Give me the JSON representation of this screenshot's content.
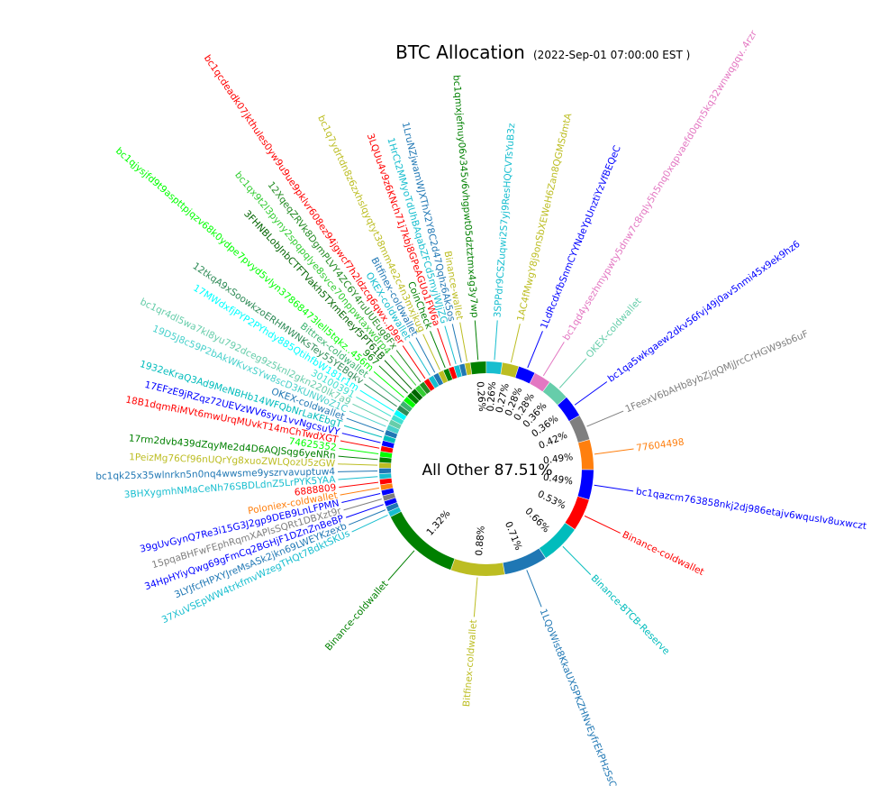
{
  "chart_data": {
    "type": "pie",
    "style": "donut",
    "title": "BTC Allocation",
    "subtitle": "(2022-Sep-01 07:00:00 EST )",
    "center_label": "All Other 87.51%",
    "other_value": 87.51,
    "slices": [
      {
        "label": "bc1qazcm763858nkj2dj986etajv6wqusIv8uxwczt",
        "value": 0.49,
        "pct": "0.49%",
        "color": "#0000ff"
      },
      {
        "label": "Binance-coldwallet",
        "value": 0.53,
        "pct": "0.53%",
        "color": "#ff0000"
      },
      {
        "label": "Binance-BTCB-Reserve",
        "value": 0.66,
        "pct": "0.66%",
        "color": "#00bcbc"
      },
      {
        "label": "1LQoWist8KkaUXSPKZHNvEyfrEkPHzSsCd",
        "value": 0.71,
        "pct": "0.71%",
        "color": "#1f77b4"
      },
      {
        "label": "Bitfinex-coldwallet",
        "value": 0.88,
        "pct": "0.88%",
        "color": "#bcbd22"
      },
      {
        "label": "Binance-coldwallet",
        "value": 1.32,
        "pct": "1.32%",
        "color": "#008000"
      },
      {
        "label": "37XuVSEpWW4trkfmvWzegTHQt7BdktSKUs",
        "value": 0.09,
        "color": "#17becf"
      },
      {
        "label": "3LYJfcfHPXYJreMsASk2jkn69LWEYKzexb",
        "value": 0.09,
        "color": "#1f77b4"
      },
      {
        "label": "34HpHYiyQwg69gFmCq2BGHjF1DZnZnBeBP",
        "value": 0.09,
        "color": "#0000ff"
      },
      {
        "label": "15pqaBHFwFEphRqmXAPlsSQRt1DBXzt9r",
        "value": 0.09,
        "color": "#7f7f7f"
      },
      {
        "label": "39gUvGynQ7Re3i15G3J2gp9DEB9LnLFPMN",
        "value": 0.09,
        "color": "#0000ff"
      },
      {
        "label": "Poloniex-coldwallet",
        "value": 0.09,
        "color": "#ff7f0e"
      },
      {
        "label": "6888809",
        "value": 0.09,
        "color": "#ff0000"
      },
      {
        "label": "3BHXygmhNMaCeNh76SBDLdnZ5LrPYK5YAA",
        "value": 0.09,
        "color": "#17becf"
      },
      {
        "label": "bc1qk25x35wlnrkn5n0nq4wwsme9yszrvavuptuw4",
        "value": 0.09,
        "color": "#1f77b4"
      },
      {
        "label": "1PeizMg76Cf96nUQrYg8xuoZWLQozU5zGW",
        "value": 0.09,
        "color": "#bcbd22"
      },
      {
        "label": "17rm2dvb439dZqyMe2d4D6AQJSqg6yeNRn",
        "value": 0.09,
        "color": "#008000"
      },
      {
        "label": "74625352",
        "value": 0.09,
        "color": "#00ff00"
      },
      {
        "label": "18B1dqmRiMVt6mwUrqMUvkT14mChTwdXGT",
        "value": 0.09,
        "color": "#ff0000"
      },
      {
        "label": "17EFzE9jRZqz72UEVzWV6syu1vvNgcsuVY",
        "value": 0.09,
        "color": "#0000ff"
      },
      {
        "label": "1932eKraQ3Ad9MeNBHb14WFQbNrLaKEbgT",
        "value": 0.09,
        "color": "#00bcbc"
      },
      {
        "label": "OKEX-coldwallet",
        "value": 0.09,
        "color": "#1f77b4"
      },
      {
        "label": "19D5J8c59P2bAkWKvxSYw8scD3KUNWoZ1C",
        "value": 0.09,
        "color": "#48d1cc"
      },
      {
        "label": "bc1qr4dl5wa7kl8yu792dceg9z5knl2gkn220lk7a9",
        "value": 0.09,
        "color": "#66cdaa"
      },
      {
        "label": "30100391",
        "value": 0.09,
        "color": "#40e0d0"
      },
      {
        "label": "17MWdxfjPYP2PYhdy885QtihfbW181r1m",
        "value": 0.09,
        "color": "#00ffff"
      },
      {
        "label": "12tkqA9xSoowkzoERHMWNKsTey55YEBqkv",
        "value": 0.09,
        "color": "#2e8b57"
      },
      {
        "label": "Bittrex-coldwallet",
        "value": 0.09,
        "color": "#3cb371"
      },
      {
        "label": "bc1qjysjfd9t9aspttpjqzv68k0ydpe7pvyd5vlyn37868473lell5tqkz..456m",
        "value": 0.09,
        "color": "#00ff00"
      },
      {
        "label": "967",
        "value": 0.09,
        "color": "#008000"
      },
      {
        "label": "3FHNBLobJnbCTFTVakh5TXmEneyf5PT61B",
        "value": 0.09,
        "color": "#006400"
      },
      {
        "label": "bc1qx9t2l3pyny2spqpqlye8svce70nppwtaxwdrp4",
        "value": 0.09,
        "color": "#32cd32"
      },
      {
        "label": "12XqeqZRVk8DgmPLVY4ZC6Y4ruUUEug8Fx",
        "value": 0.09,
        "color": "#228b22"
      },
      {
        "label": "bc1qcdeadk07jkthules0yw9u9ue9pklvr608ez94jgwcf7h2ldzcq6qwx..p9er",
        "value": 0.09,
        "color": "#ff0000"
      },
      {
        "label": "OKEX-coldwallet",
        "value": 0.09,
        "color": "#17becf"
      },
      {
        "label": "Bitfinex-coldwallet",
        "value": 0.09,
        "color": "#1f77b4"
      },
      {
        "label": "bc1q7ydrtdn8z6zxhslqyqtyt38mm4e2c4n3mxjkug",
        "value": 0.09,
        "color": "#bcbd22"
      },
      {
        "label": "CoinCheck",
        "value": 0.09,
        "color": "#008000"
      },
      {
        "label": "3LQUu4v9z6KNch71j7kbj8GPeAGUo1FW6a",
        "value": 0.09,
        "color": "#ff0000"
      },
      {
        "label": "1HrCt2MMyoTdUhBAqabZFCd5myjWJjZG",
        "value": 0.09,
        "color": "#17becf"
      },
      {
        "label": "1LruNZjwamWJXThX2Y8C2d47Qqhz6Ak5os",
        "value": 0.09,
        "color": "#1f77b4"
      },
      {
        "label": "Binance-wallet",
        "value": 0.09,
        "color": "#bcbd22"
      },
      {
        "label": "bc1qmxjefnuy06v345v6vhgpwt05dztztmx4g3y7wp",
        "value": 0.26,
        "pct": "0.26%",
        "color": "#008000"
      },
      {
        "label": "3SPPdr9CSZuqwi2S7yj9ResHQCVTsYuB3z",
        "value": 0.26,
        "pct": "0.26%",
        "color": "#17becf"
      },
      {
        "label": "1AC4fMwgY8j9onSbXEWeH6Zan8QGMSdmtA",
        "value": 0.27,
        "pct": "0.27%",
        "color": "#bcbd22"
      },
      {
        "label": "1LdRcdxfbSnmCYYNdeYpUnztiYzVfBEQeC",
        "value": 0.28,
        "pct": "0.28%",
        "color": "#0000ff"
      },
      {
        "label": "bc1qd4ysezhmypwty5dnw7c8rqly5h5nq0xqpvaefd0qm5kq32wnwqgqv..4rzr",
        "value": 0.28,
        "pct": "0.28%",
        "color": "#e377c2"
      },
      {
        "label": "OKEX-coldwallet",
        "value": 0.36,
        "pct": "0.36%",
        "color": "#66cdaa"
      },
      {
        "label": "bc1qa5wkgaew2dkv56fvj49j0av5nmi45x9ek9hz6",
        "value": 0.36,
        "pct": "0.36%",
        "color": "#0000ff"
      },
      {
        "label": "1FeexV6bAHb8ybZjqQMjJrcCrHGW9sb6uF",
        "value": 0.42,
        "pct": "0.42%",
        "color": "#7f7f7f"
      },
      {
        "label": "77604498",
        "value": 0.49,
        "pct": "0.49%",
        "color": "#ff7f0e"
      }
    ]
  }
}
